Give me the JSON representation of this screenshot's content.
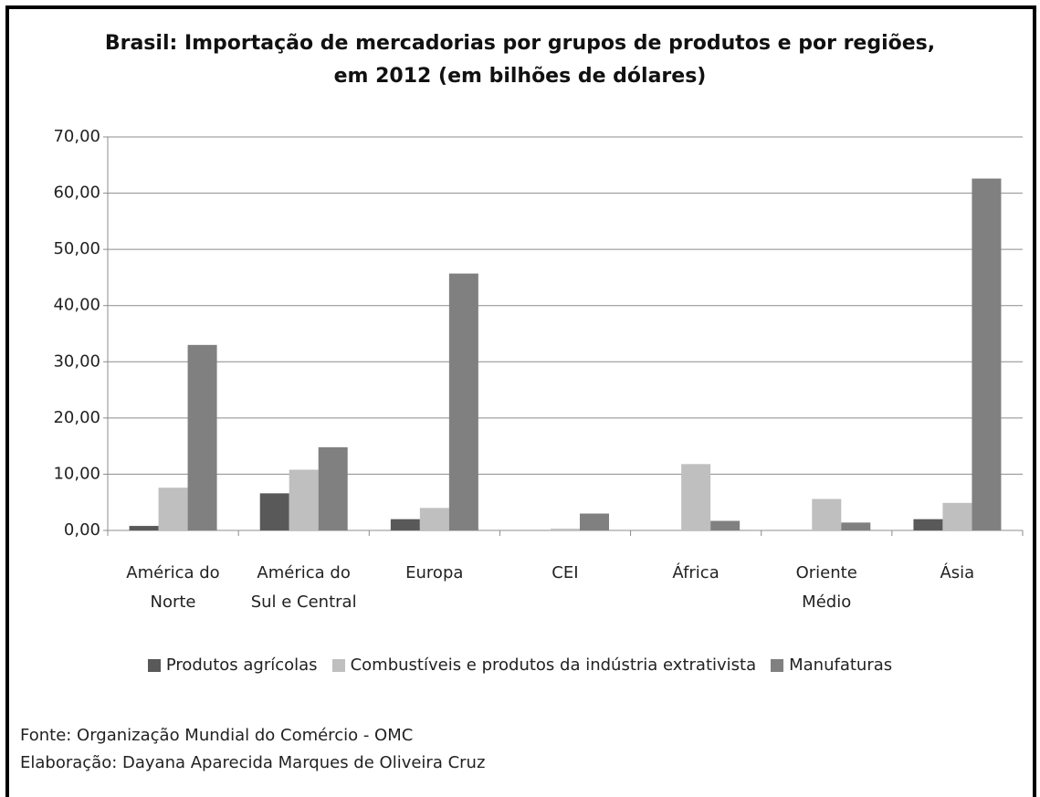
{
  "chart_data": {
    "type": "bar",
    "title": "Brasil: Importação de mercadorias por grupos de produtos e por regiões,\nem 2012  (em bilhões de dólares)",
    "categories": [
      "América do\nNorte",
      "América do\nSul e Central",
      "Europa",
      "CEI",
      "África",
      "Oriente\nMédio",
      "Ásia"
    ],
    "series": [
      {
        "name": "Produtos agrícolas",
        "color": "#595959",
        "values": [
          0.8,
          6.6,
          2.0,
          0,
          0,
          0,
          2.0
        ]
      },
      {
        "name": "Combustíveis e produtos da indústria extrativista",
        "color": "#bfbfbf",
        "values": [
          7.6,
          10.8,
          4.0,
          0.3,
          11.8,
          5.6,
          4.9
        ]
      },
      {
        "name": "Manufaturas",
        "color": "#808080",
        "values": [
          33.0,
          14.8,
          45.7,
          3.0,
          1.7,
          1.4,
          62.6
        ]
      }
    ],
    "ylim": [
      0,
      70
    ],
    "yticks": [
      {
        "value": 0,
        "label": "0,00"
      },
      {
        "value": 10,
        "label": "10,00"
      },
      {
        "value": 20,
        "label": "20,00"
      },
      {
        "value": 30,
        "label": "30,00"
      },
      {
        "value": 40,
        "label": "40,00"
      },
      {
        "value": 50,
        "label": "50,00"
      },
      {
        "value": 60,
        "label": "60,00"
      },
      {
        "value": 70,
        "label": "70,00"
      }
    ],
    "grid": true,
    "legend": "bottom",
    "notes": [
      "Fonte: Organização Mundial do Comércio - OMC",
      "Elaboração: Dayana Aparecida Marques de Oliveira Cruz"
    ]
  }
}
